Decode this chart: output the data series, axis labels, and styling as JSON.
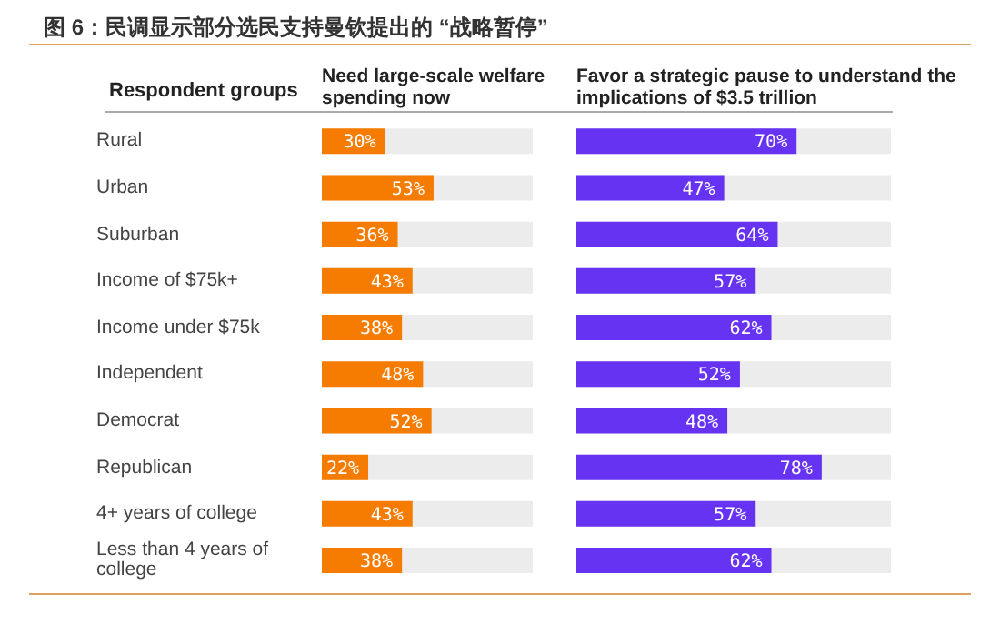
{
  "chart_data": [
    {
      "type": "bar",
      "orientation": "horizontal",
      "title": "图 6：民调显示部分选民支持曼钦提出的 “战略暂停”",
      "subtitle": "Need large-scale welfare spending now",
      "ylabel": "Respondent groups",
      "categories": [
        "Rural",
        "Urban",
        "Suburban",
        "Income of $75k+",
        "Income under $75k",
        "Independent",
        "Democrat",
        "Republican",
        "4+ years of college",
        "Less than 4 years of college"
      ],
      "series": [
        {
          "color": "#f57c00",
          "values": [
            30,
            53,
            36,
            43,
            38,
            48,
            52,
            22,
            43,
            38
          ],
          "value_labels": [
            "30%",
            "53%",
            "36%",
            "43%",
            "38%",
            "48%",
            "52%",
            "22%",
            "43%",
            "38%"
          ]
        }
      ],
      "xlim": [
        0,
        100
      ],
      "tick_labels": "y",
      "grid": false,
      "legend": false
    },
    {
      "type": "bar",
      "orientation": "horizontal",
      "title": "Favor a strategic pause to understand the implications of $3.5 trillion",
      "categories": [
        null,
        null,
        null,
        null,
        null,
        null,
        null,
        null,
        null,
        null
      ],
      "series": [
        {
          "color": "#6633f2",
          "values": [
            70,
            47,
            64,
            57,
            62,
            52,
            48,
            78,
            57,
            62
          ],
          "value_labels": [
            "70%",
            "47%",
            "64%",
            "57%",
            "62%",
            "52%",
            "48%",
            "78%",
            "57%",
            "62%"
          ]
        }
      ],
      "xlim": [
        0,
        100
      ],
      "tick_labels": false,
      "grid": false,
      "legend": false
    }
  ]
}
